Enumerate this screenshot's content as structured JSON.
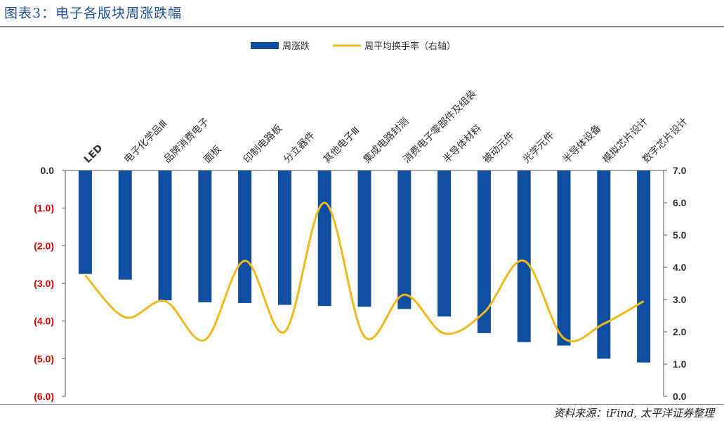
{
  "figure_title": "图表3：电子各版块周涨跌幅",
  "source_note": "资料来源：iFind, 太平洋证券整理",
  "colors": {
    "bar": "#0f4ea0",
    "line": "#f3b81a",
    "left_axis_labels": "#e00000",
    "right_axis_labels": "#333333"
  },
  "chart_data": {
    "type": "bar",
    "title": "",
    "categories": [
      "LED",
      "电子化学品Ⅲ",
      "品牌消费电子",
      "面板",
      "印制电路板",
      "分立器件",
      "其他电子Ⅲ",
      "集成电路封测",
      "消费电子零部件及组装",
      "半导体材料",
      "被动元件",
      "光学元件",
      "半导体设备",
      "模拟芯片设计",
      "数字芯片设计"
    ],
    "series": [
      {
        "name": "周涨跌",
        "type": "bar",
        "axis": "left",
        "values": [
          -2.75,
          -2.9,
          -3.45,
          -3.5,
          -3.52,
          -3.57,
          -3.6,
          -3.62,
          -3.68,
          -3.88,
          -4.32,
          -4.56,
          -4.65,
          -5.0,
          -5.1
        ]
      },
      {
        "name": "周平均换手率（右轴）",
        "type": "line",
        "axis": "right",
        "smooth": true,
        "values": [
          3.75,
          2.45,
          2.95,
          1.75,
          4.2,
          2.0,
          6.0,
          1.85,
          3.15,
          1.95,
          2.6,
          4.2,
          1.8,
          2.25,
          2.95
        ]
      }
    ],
    "y_left": {
      "min": -6.0,
      "max": 0.0,
      "step": 1.0,
      "tick_labels": [
        "0.0",
        "(1.0)",
        "(2.0)",
        "(3.0)",
        "(4.0)",
        "(5.0)",
        "(6.0)"
      ]
    },
    "y_right": {
      "min": 0.0,
      "max": 7.0,
      "step": 1.0,
      "tick_labels": [
        "7.0",
        "6.0",
        "5.0",
        "4.0",
        "3.0",
        "2.0",
        "1.0",
        "0.0"
      ]
    },
    "grid": false,
    "legend": {
      "position": "top-center",
      "items": [
        "周涨跌",
        "周平均换手率（右轴）"
      ]
    }
  }
}
